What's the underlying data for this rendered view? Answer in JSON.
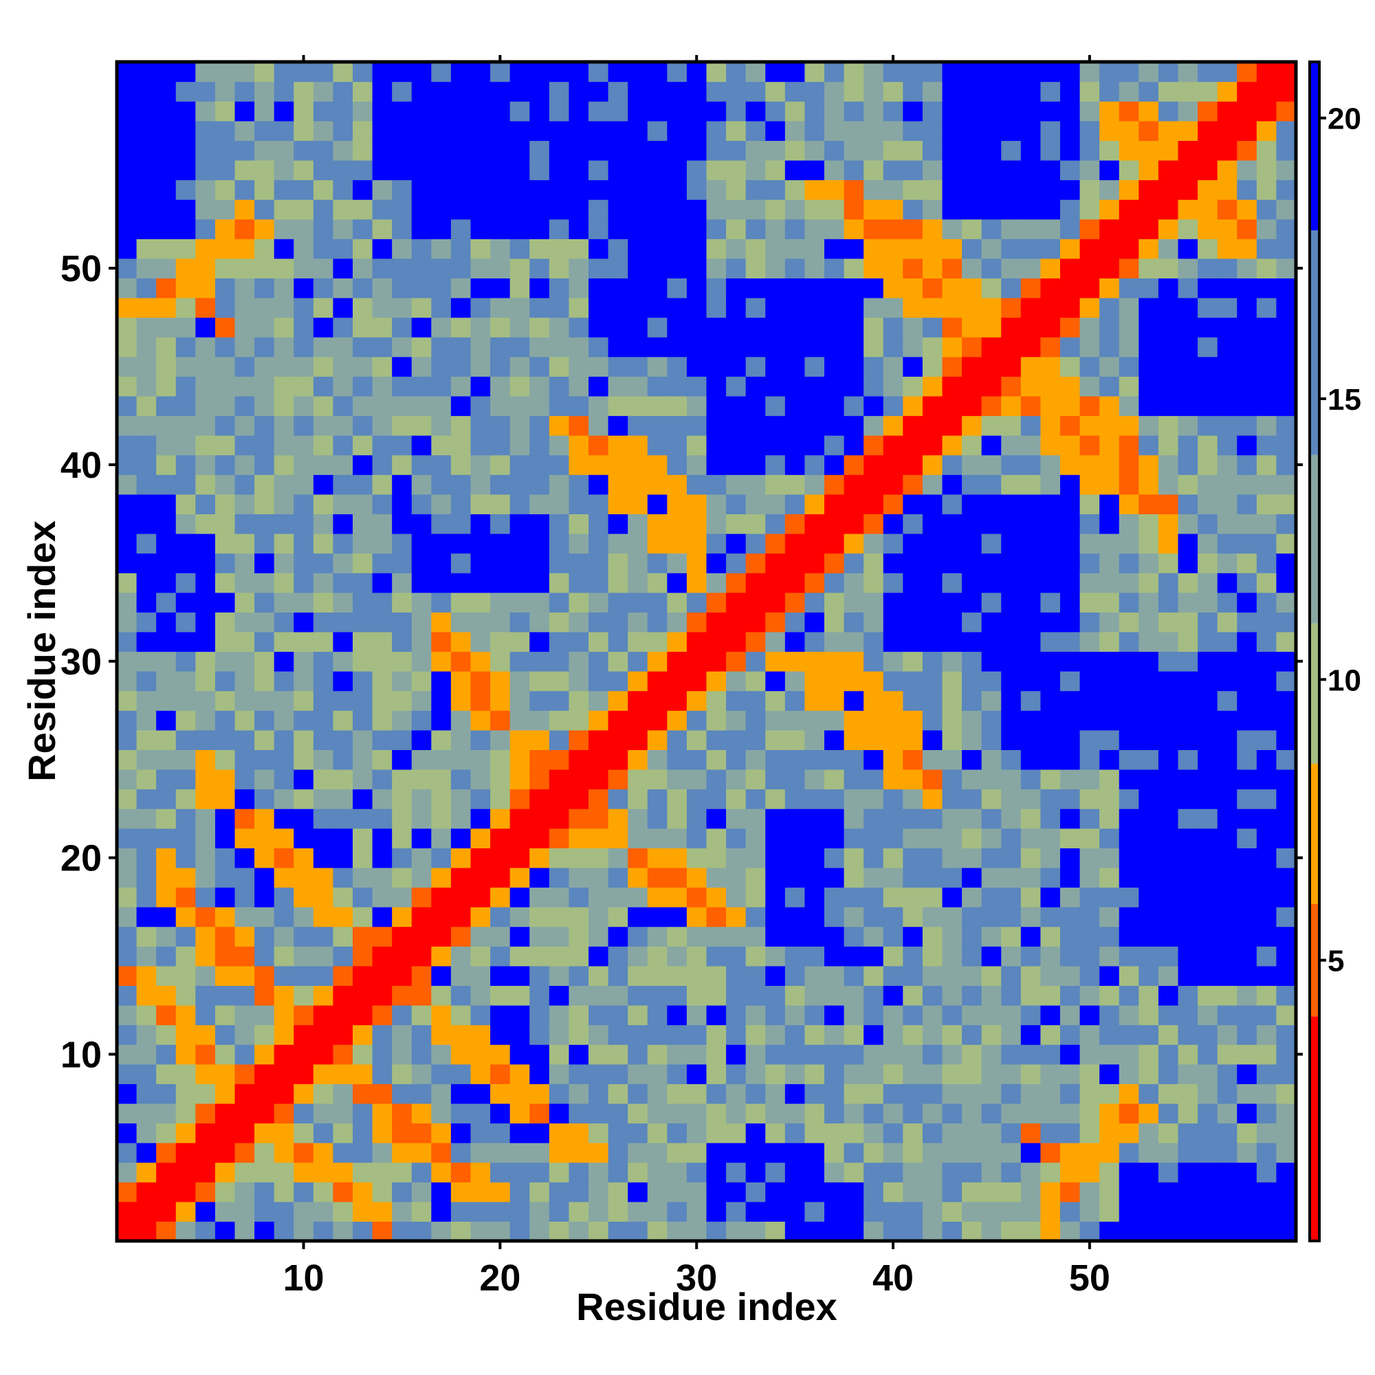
{
  "chart_data": {
    "type": "heatmap",
    "title": "",
    "xlabel": "Residue index",
    "ylabel": "Residue index",
    "n": 60,
    "xlim": [
      0.5,
      60.5
    ],
    "ylim": [
      0.5,
      60.5
    ],
    "x_ticks": [
      10,
      20,
      30,
      40,
      50
    ],
    "y_ticks": [
      10,
      20,
      30,
      40,
      50
    ],
    "colorbar": {
      "range": [
        0,
        21
      ],
      "ticks": [
        5,
        10,
        15,
        20
      ],
      "bins": [
        {
          "min": 0,
          "max": 4,
          "color": "#ff0000"
        },
        {
          "min": 4,
          "max": 6,
          "color": "#ff6000"
        },
        {
          "min": 6,
          "max": 8.5,
          "color": "#ffa500"
        },
        {
          "min": 8.5,
          "max": 11,
          "color": "#a5bd82"
        },
        {
          "min": 11,
          "max": 14,
          "color": "#88a7a3"
        },
        {
          "min": 14,
          "max": 18,
          "color": "#5b86be"
        },
        {
          "min": 18,
          "max": 21,
          "color": "#0000ff"
        }
      ]
    },
    "description_of_values": "Symmetric residue-residue distance map; red diagonal band (i==j and |i-j|<=1), orange contacts near the diagonal and in off-diagonal strands, blue blocks for distant pairs.",
    "contact_segments": [
      {
        "from": [
          1,
          14
        ],
        "to": [
          8,
          7
        ]
      },
      {
        "from": [
          3,
          19
        ],
        "to": [
          12,
          9
        ]
      },
      {
        "from": [
          4,
          50
        ],
        "to": [
          6,
          47
        ]
      },
      {
        "from": [
          16,
          13
        ],
        "to": [
          24,
          5
        ]
      },
      {
        "from": [
          22,
          24
        ],
        "to": [
          31,
          17
        ]
      },
      {
        "from": [
          25,
          40
        ],
        "to": [
          30,
          35
        ]
      },
      {
        "from": [
          37,
          30
        ],
        "to": [
          42,
          24
        ]
      },
      {
        "from": [
          38,
          54
        ],
        "to": [
          45,
          48
        ]
      },
      {
        "from": [
          46,
          44
        ],
        "to": [
          54,
          37
        ]
      },
      {
        "from": [
          48,
          2
        ],
        "to": [
          52,
          7
        ]
      },
      {
        "from": [
          52,
          57
        ],
        "to": [
          58,
          52
        ]
      }
    ],
    "far_blocks": [
      [
        1,
        4,
        56,
        60
      ],
      [
        14,
        22,
        55,
        60
      ],
      [
        25,
        30,
        46,
        60
      ],
      [
        43,
        47,
        53,
        60
      ],
      [
        31,
        38,
        40,
        48
      ],
      [
        45,
        49,
        30,
        38
      ],
      [
        52,
        60,
        16,
        24
      ],
      [
        53,
        60,
        45,
        49
      ],
      [
        9,
        12,
        19,
        22
      ],
      [
        18,
        22,
        6,
        9
      ],
      [
        1,
        3,
        35,
        38
      ],
      [
        52,
        60,
        1,
        4
      ],
      [
        31,
        36,
        2,
        5
      ],
      [
        34,
        37,
        16,
        22
      ]
    ]
  }
}
